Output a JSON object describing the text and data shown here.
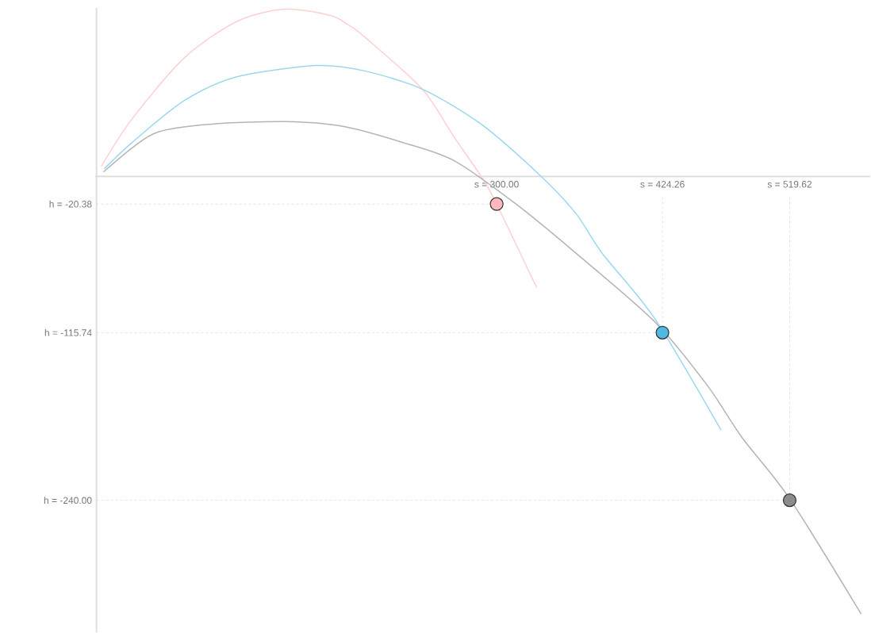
{
  "chart_data": {
    "type": "line",
    "xlim": [
      -1,
      580
    ],
    "ylim": [
      -338,
      125
    ],
    "xticks": [
      {
        "value": 300,
        "label": "s = 300.00"
      },
      {
        "value": 424.26,
        "label": "s = 424.26"
      },
      {
        "value": 519.62,
        "label": "s = 519.62"
      }
    ],
    "yticks": [
      {
        "value": -20.38,
        "label": "h = -20.38"
      },
      {
        "value": -115.74,
        "label": "h = -115.74"
      },
      {
        "value": -240,
        "label": "h = -240.00"
      }
    ],
    "ref_lines": [
      {
        "axis": "x",
        "value": 424.26,
        "color": "#dddddd",
        "line_style": "dashed"
      },
      {
        "axis": "x",
        "value": 519.62,
        "color": "#dddddd",
        "line_style": "dashed"
      },
      {
        "axis": "y",
        "value": -20.38,
        "color": "#dddddd",
        "line_style": "dashed"
      },
      {
        "axis": "y",
        "value": -115.74,
        "color": "#dddddd",
        "line_style": "dashed"
      },
      {
        "axis": "y",
        "value": -240,
        "color": "#dddddd",
        "line_style": "dashed"
      }
    ],
    "series": [
      {
        "color": "#ffcfd2",
        "x": [
          3.8,
          26.9,
          66.2,
          105.9,
          141.5,
          175.4,
          189.0,
          200.9,
          244.2,
          267.9,
          289.9,
          300,
          329.8
        ],
        "values": [
          7.8,
          43.0,
          88.3,
          115.3,
          124.1,
          119.4,
          112.3,
          103.6,
          64.8,
          29.5,
          -2.2,
          -20.4,
          -82.0
        ]
      },
      {
        "color": "#9ad8ef",
        "x": [
          6.2,
          26.9,
          66.2,
          105.9,
          165.2,
          200.9,
          244.2,
          288.1,
          333.2,
          359.4,
          379.0,
          418.7,
          468.0
        ],
        "values": [
          6.1,
          25.4,
          56.5,
          74.1,
          82.3,
          78.3,
          64.8,
          39.0,
          0.2,
          -27.4,
          -56.8,
          -105.6,
          -187.7
        ]
      },
      {
        "color": "#b4b4b4",
        "x": [
          5.6,
          26.9,
          46.5,
          86.3,
          141.5,
          184.8,
          228.8,
          267.9,
          313.7,
          359.4,
          418.7,
          457.9,
          484.0,
          519.6,
          573.0
        ],
        "values": [
          3.7,
          21.3,
          33.1,
          38.9,
          40.7,
          37.2,
          25.5,
          11.9,
          -19.8,
          -56.8,
          -107.9,
          -154.9,
          -193.6,
          -238.8,
          -324
        ]
      },
      {
        "type": "scatter",
        "marker": "circle",
        "x": [
          300,
          424.26,
          519.62
        ],
        "values": [
          -20.38,
          -115.74,
          -240
        ],
        "colors": [
          "#ffb8bc",
          "#4fb9e3",
          "#8c8c8c"
        ]
      }
    ]
  }
}
